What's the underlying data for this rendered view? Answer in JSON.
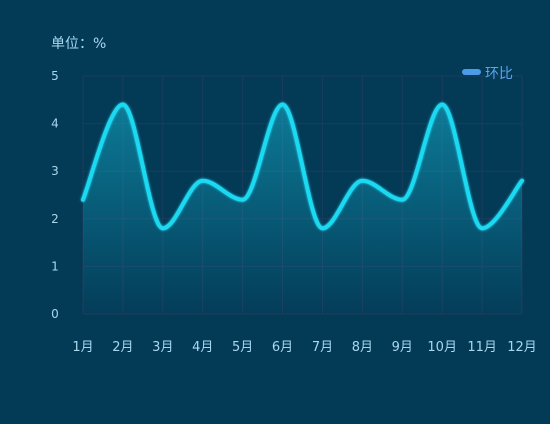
{
  "chart_data": {
    "type": "area",
    "unit_label": "单位：%",
    "categories": [
      "1月",
      "2月",
      "3月",
      "4月",
      "5月",
      "6月",
      "7月",
      "8月",
      "9月",
      "10月",
      "11月",
      "12月"
    ],
    "series": [
      {
        "name": "环比",
        "values": [
          2.4,
          4.4,
          1.8,
          2.8,
          2.4,
          4.4,
          1.8,
          2.8,
          2.4,
          4.4,
          1.8,
          2.8
        ]
      }
    ],
    "ylim": [
      0,
      5
    ],
    "yticks": [
      0,
      1,
      2,
      3,
      4,
      5
    ],
    "grid": true,
    "legend_position": "top-right",
    "colors": {
      "background": "#033a56",
      "line": "#1fd9f2",
      "grid": "#1c3d5c",
      "axis_text": "#a9d8ee",
      "legend_text": "#5aa6ef",
      "legend_swatch": "#4c9be8"
    }
  }
}
